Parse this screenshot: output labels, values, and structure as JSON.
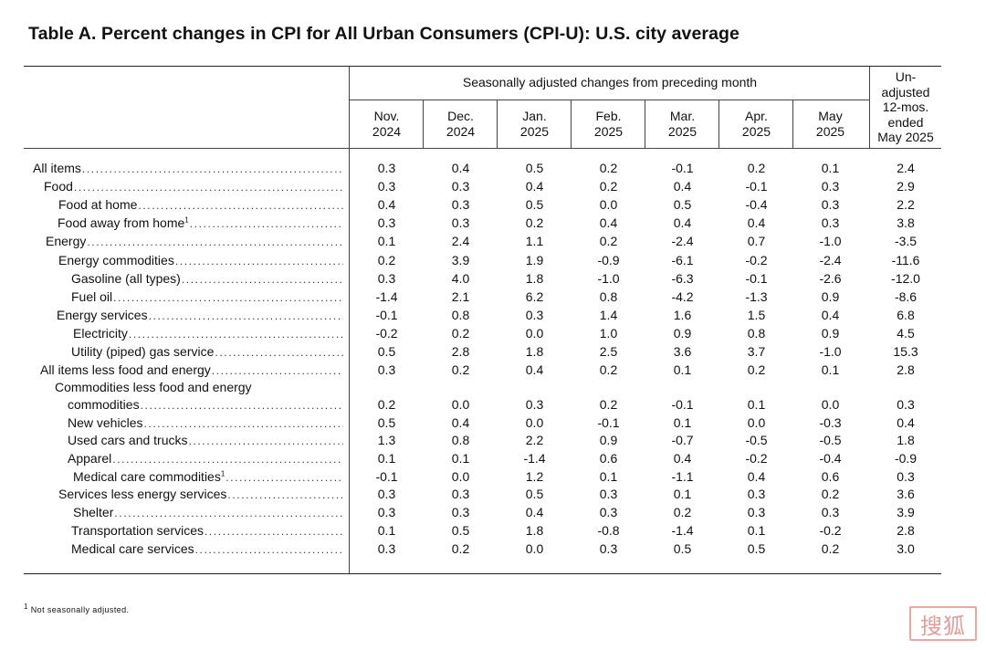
{
  "title": "Table A. Percent changes in CPI for All Urban Consumers (CPI-U): U.S. city average",
  "group_header": "Seasonally adjusted changes from preceding month",
  "unadjusted_header": [
    "Un-",
    "adjusted",
    "12-mos.",
    "ended",
    "May 2025"
  ],
  "columns": [
    [
      "Nov.",
      "2024"
    ],
    [
      "Dec.",
      "2024"
    ],
    [
      "Jan.",
      "2025"
    ],
    [
      "Feb.",
      "2025"
    ],
    [
      "Mar.",
      "2025"
    ],
    [
      "Apr.",
      "2025"
    ],
    [
      "May",
      "2025"
    ]
  ],
  "rows": [
    {
      "label": "All items",
      "values": [
        "0.3",
        "0.4",
        "0.5",
        "0.2",
        "-0.1",
        "0.2",
        "0.1",
        "2.4"
      ]
    },
    {
      "label": "Food",
      "values": [
        "0.3",
        "0.3",
        "0.4",
        "0.2",
        "0.4",
        "-0.1",
        "0.3",
        "2.9"
      ]
    },
    {
      "label": "Food at home",
      "values": [
        "0.4",
        "0.3",
        "0.5",
        "0.0",
        "0.5",
        "-0.4",
        "0.3",
        "2.2"
      ]
    },
    {
      "label": "Food away from home",
      "sup": "1",
      "values": [
        "0.3",
        "0.3",
        "0.2",
        "0.4",
        "0.4",
        "0.4",
        "0.3",
        "3.8"
      ]
    },
    {
      "label": "Energy",
      "values": [
        "0.1",
        "2.4",
        "1.1",
        "0.2",
        "-2.4",
        "0.7",
        "-1.0",
        "-3.5"
      ]
    },
    {
      "label": "Energy commodities",
      "values": [
        "0.2",
        "3.9",
        "1.9",
        "-0.9",
        "-6.1",
        "-0.2",
        "-2.4",
        "-11.6"
      ]
    },
    {
      "label": "Gasoline (all types)",
      "values": [
        "0.3",
        "4.0",
        "1.8",
        "-1.0",
        "-6.3",
        "-0.1",
        "-2.6",
        "-12.0"
      ]
    },
    {
      "label": "Fuel oil",
      "values": [
        "-1.4",
        "2.1",
        "6.2",
        "0.8",
        "-4.2",
        "-1.3",
        "0.9",
        "-8.6"
      ]
    },
    {
      "label": "Energy services",
      "values": [
        "-0.1",
        "0.8",
        "0.3",
        "1.4",
        "1.6",
        "1.5",
        "0.4",
        "6.8"
      ]
    },
    {
      "label": "Electricity",
      "values": [
        "-0.2",
        "0.2",
        "0.0",
        "1.0",
        "0.9",
        "0.8",
        "0.9",
        "4.5"
      ]
    },
    {
      "label": "Utility (piped) gas service",
      "values": [
        "0.5",
        "2.8",
        "1.8",
        "2.5",
        "3.6",
        "3.7",
        "-1.0",
        "15.3"
      ]
    },
    {
      "label": "All items less food and energy",
      "values": [
        "0.3",
        "0.2",
        "0.4",
        "0.2",
        "0.1",
        "0.2",
        "0.1",
        "2.8"
      ]
    },
    {
      "label": "Commodities less food and energy",
      "label2": "commodities",
      "values": [
        "0.2",
        "0.0",
        "0.3",
        "0.2",
        "-0.1",
        "0.1",
        "0.0",
        "0.3"
      ]
    },
    {
      "label": "New vehicles",
      "values": [
        "0.5",
        "0.4",
        "0.0",
        "-0.1",
        "0.1",
        "0.0",
        "-0.3",
        "0.4"
      ]
    },
    {
      "label": "Used cars and trucks",
      "values": [
        "1.3",
        "0.8",
        "2.2",
        "0.9",
        "-0.7",
        "-0.5",
        "-0.5",
        "1.8"
      ]
    },
    {
      "label": "Apparel",
      "values": [
        "0.1",
        "0.1",
        "-1.4",
        "0.6",
        "0.4",
        "-0.2",
        "-0.4",
        "-0.9"
      ]
    },
    {
      "label": "Medical care commodities",
      "sup": "1",
      "values": [
        "-0.1",
        "0.0",
        "1.2",
        "0.1",
        "-1.1",
        "0.4",
        "0.6",
        "0.3"
      ]
    },
    {
      "label": "Services less energy services",
      "values": [
        "0.3",
        "0.3",
        "0.5",
        "0.3",
        "0.1",
        "0.3",
        "0.2",
        "3.6"
      ]
    },
    {
      "label": "Shelter",
      "values": [
        "0.3",
        "0.3",
        "0.4",
        "0.3",
        "0.2",
        "0.3",
        "0.3",
        "3.9"
      ]
    },
    {
      "label": "Transportation services",
      "values": [
        "0.1",
        "0.5",
        "1.8",
        "-0.8",
        "-1.4",
        "0.1",
        "-0.2",
        "2.8"
      ]
    },
    {
      "label": "Medical care services",
      "values": [
        "0.3",
        "0.2",
        "0.0",
        "0.3",
        "0.5",
        "0.5",
        "0.2",
        "3.0"
      ]
    }
  ],
  "footnote": {
    "marker": "1",
    "text": "Not seasonally adjusted."
  },
  "seal_text": "搜狐"
}
